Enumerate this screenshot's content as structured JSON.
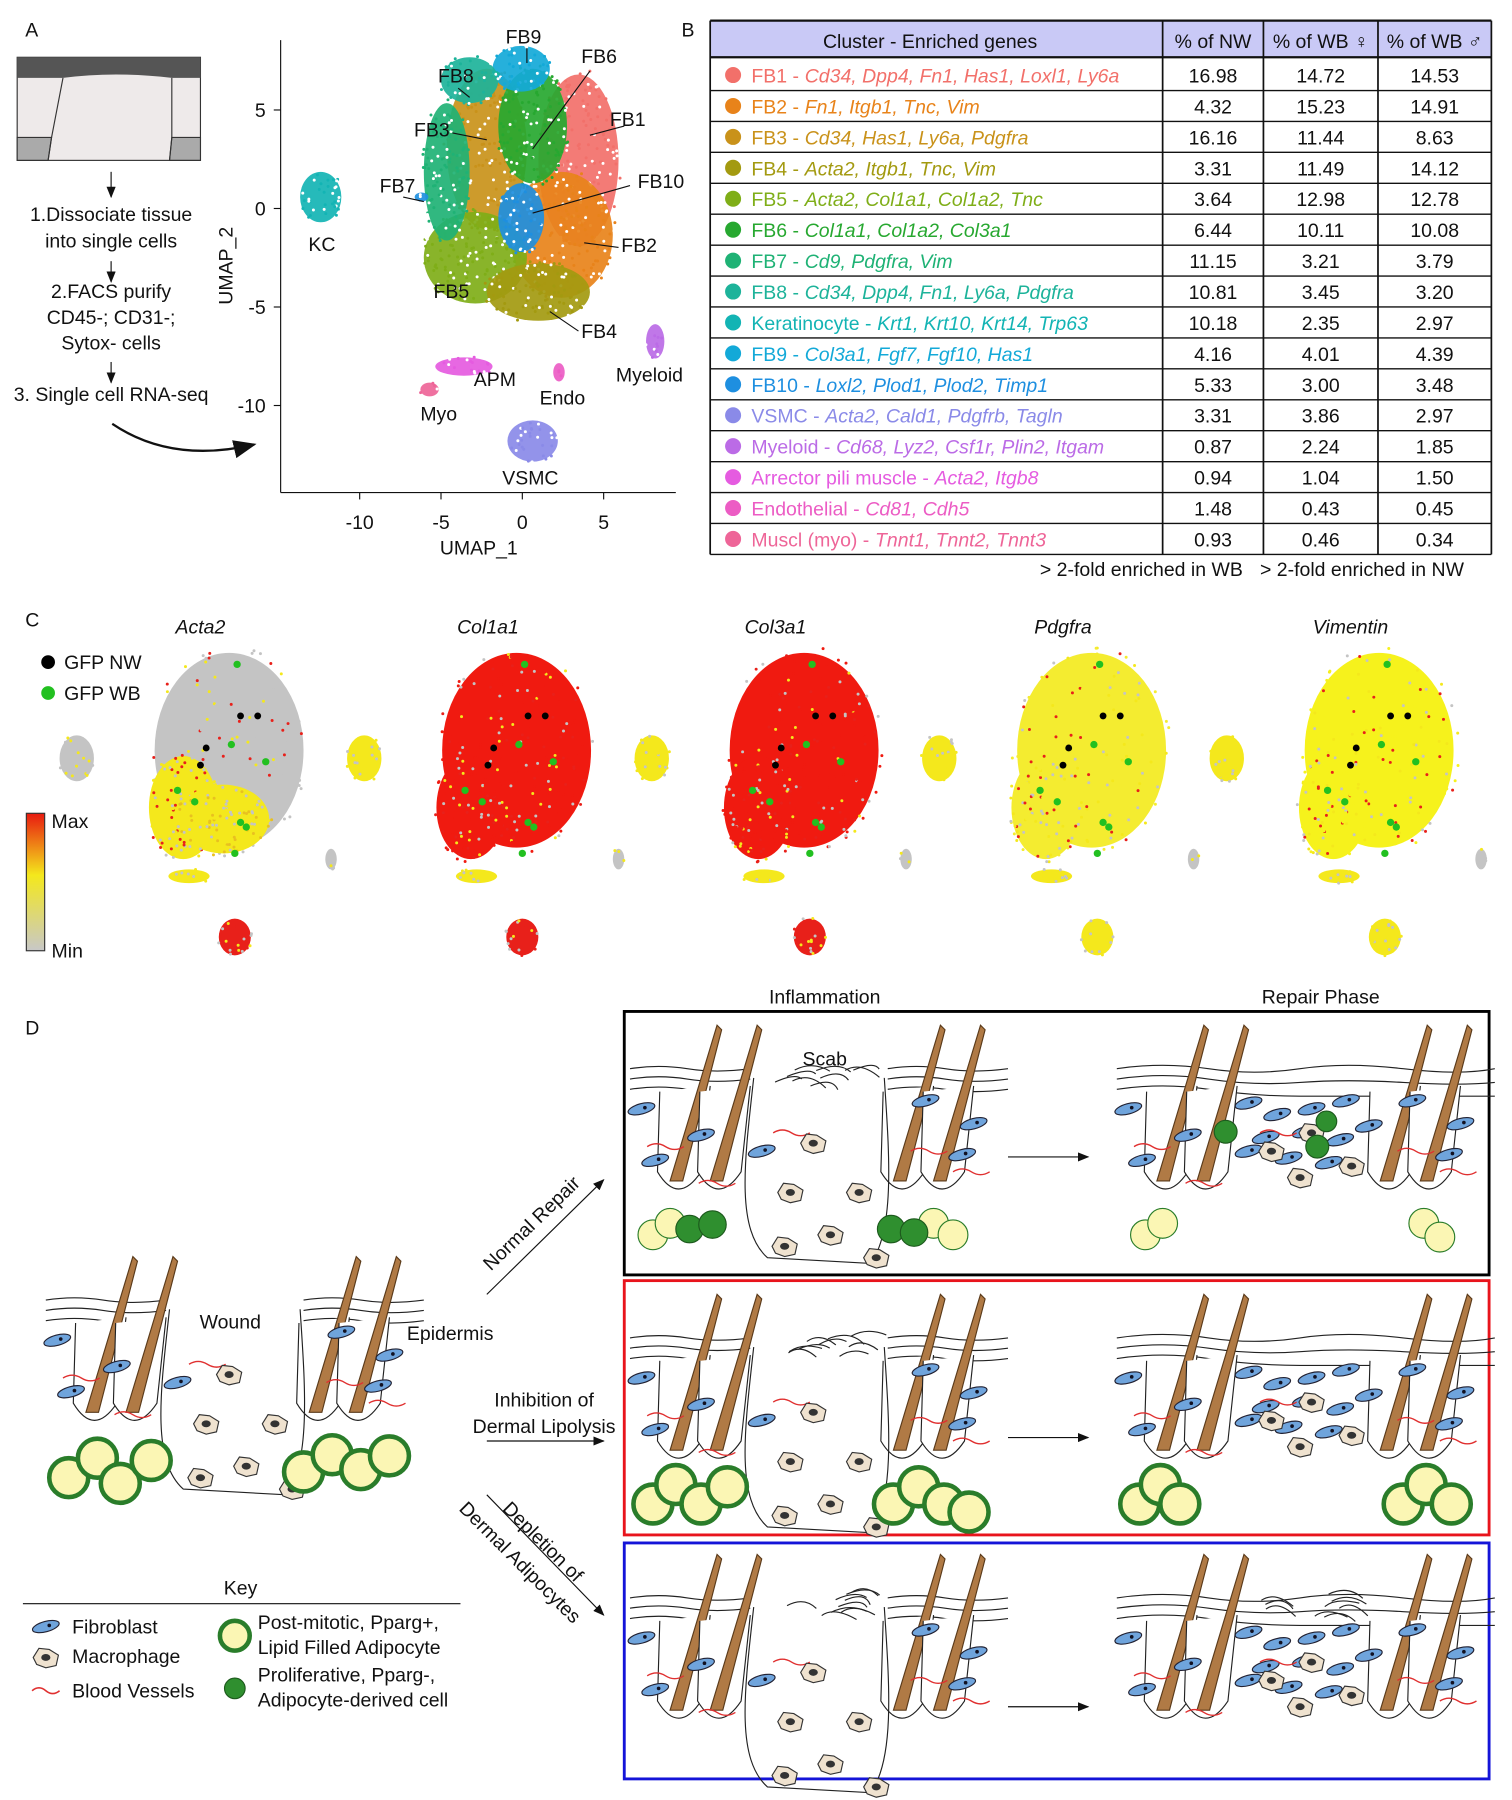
{
  "panel_a": {
    "label": "A",
    "steps": [
      [
        "1.Dissociate tissue",
        "into single cells"
      ],
      [
        "2.FACS purify",
        "CD45-; CD31-;",
        "Sytox- cells"
      ],
      [
        "3. Single cell RNA-seq"
      ]
    ],
    "umap": {
      "x_label": "UMAP_1",
      "y_label": "UMAP_2",
      "xticks": [
        -10,
        -5,
        0,
        5
      ],
      "yticks": [
        -10,
        -5,
        0,
        5
      ],
      "clusters": [
        "FB9",
        "FB6",
        "FB8",
        "FB1",
        "FB3",
        "FB7",
        "FB10",
        "KC",
        "FB2",
        "FB5",
        "FB4",
        "APM",
        "Myeloid",
        "Endo",
        "Myo",
        "VSMC"
      ]
    }
  },
  "panel_b": {
    "label": "B",
    "header": [
      "Cluster - Enriched genes",
      "% of NW",
      "% of WB ♀",
      "% of WB ♂"
    ],
    "enrichment_colors": {
      "WB": "#e8141c",
      "NW": "#1414d8"
    },
    "rows": [
      {
        "color": "#f2706a",
        "name": "FB1 -",
        "genes": "Cd34, Dpp4, Fn1, Has1, Loxl1, Ly6a",
        "values": [
          "16.98",
          "14.72",
          "14.53"
        ],
        "enriched_in": null
      },
      {
        "color": "#e8831a",
        "name": "FB2 -",
        "genes": "Fn1, Itgb1, Tnc, Vim",
        "values": [
          "4.32",
          "15.23",
          "14.91"
        ],
        "enriched_in": "WB"
      },
      {
        "color": "#c9921a",
        "name": "FB3 -",
        "genes": "Cd34, Has1, Ly6a, Pdgfra",
        "values": [
          "16.16",
          "11.44",
          "8.63"
        ],
        "enriched_in": null
      },
      {
        "color": "#a39a10",
        "name": "FB4 -",
        "genes": "Acta2, Itgb1, Tnc, Vim",
        "values": [
          "3.31",
          "11.49",
          "14.12"
        ],
        "enriched_in": "WB"
      },
      {
        "color": "#7fae18",
        "name": "FB5 -",
        "genes": "Acta2, Col1a1, Col1a2, Tnc",
        "values": [
          "3.64",
          "12.98",
          "12.78"
        ],
        "enriched_in": "WB"
      },
      {
        "color": "#27a830",
        "name": "FB6 -",
        "genes": "Col1a1, Col1a2, Col3a1",
        "values": [
          "6.44",
          "10.11",
          "10.08"
        ],
        "enriched_in": null
      },
      {
        "color": "#1fb275",
        "name": "FB7 -",
        "genes": "Cd9, Pdgfra, Vim",
        "values": [
          "11.15",
          "3.21",
          "3.79"
        ],
        "enriched_in": "NW"
      },
      {
        "color": "#1db39a",
        "name": "FB8 -",
        "genes": "Cd34, Dpp4, Fn1, Ly6a, Pdgfra",
        "values": [
          "10.81",
          "3.45",
          "3.20"
        ],
        "enriched_in": "NW"
      },
      {
        "color": "#13b4b4",
        "name": "Keratinocyte -",
        "genes": "Krt1, Krt10, Krt14, Trp63",
        "values": [
          "10.18",
          "2.35",
          "2.97"
        ],
        "enriched_in": "NW"
      },
      {
        "color": "#13a9d8",
        "name": "FB9 -",
        "genes": "Col3a1, Fgf7, Fgf10, Has1",
        "values": [
          "4.16",
          "4.01",
          "4.39"
        ],
        "enriched_in": null
      },
      {
        "color": "#1e8fe0",
        "name": "FB10 -",
        "genes": "Loxl2, Plod1, Plod2, Timp1",
        "values": [
          "5.33",
          "3.00",
          "3.48"
        ],
        "enriched_in": null
      },
      {
        "color": "#8a8ae8",
        "name": "VSMC -",
        "genes": "Acta2, Cald1, Pdgfrb, Tagln",
        "values": [
          "3.31",
          "3.86",
          "2.97"
        ],
        "enriched_in": null
      },
      {
        "color": "#bb6be6",
        "name": "Myeloid -",
        "genes": "Cd68, Lyz2, Csf1r, Plin2, Itgam",
        "values": [
          "0.87",
          "2.24",
          "1.85"
        ],
        "enriched_in": "WB"
      },
      {
        "color": "#e55be0",
        "name": "Arrector pili muscle -",
        "genes": "Acta2, Itgb8",
        "values": [
          "0.94",
          "1.04",
          "1.50"
        ],
        "enriched_in": null
      },
      {
        "color": "#ec5cc4",
        "name": "Endothelial -",
        "genes": "Cd81, Cdh5",
        "values": [
          "1.48",
          "0.43",
          "0.45"
        ],
        "enriched_in": "NW"
      },
      {
        "color": "#ee6598",
        "name": "Muscl (myo) -",
        "genes": "Tnnt1, Tnnt2, Tnnt3",
        "values": [
          "0.93",
          "0.46",
          "0.34"
        ],
        "enriched_in": "NW"
      }
    ],
    "notes": [
      {
        "text": "> 2-fold enriched in WB",
        "enriched_in": "WB"
      },
      {
        "text": "> 2-fold enriched in NW",
        "enriched_in": "NW"
      }
    ]
  },
  "panel_c": {
    "label": "C",
    "genes": [
      {
        "name": "Acta2",
        "color": "#c4c4c4"
      },
      {
        "name": "Col1a1",
        "color": "#f01a10"
      },
      {
        "name": "Col3a1",
        "color": "#f01a10"
      },
      {
        "name": "Pdgfra",
        "color": "#f4ec30"
      },
      {
        "name": "Vimentin",
        "color": "#f6f21c"
      }
    ],
    "legend": [
      {
        "name": "GFP NW",
        "color": "#000000"
      },
      {
        "name": "GFP WB",
        "color": "#22c020"
      }
    ],
    "scale": {
      "max": "Max",
      "min": "Min"
    }
  },
  "panel_d": {
    "label": "D",
    "phases": [
      "Inflammation",
      "Repair Phase"
    ],
    "labels": {
      "scab": "Scab",
      "wound": "Wound",
      "epidermis": "Epidermis"
    },
    "conditions": [
      {
        "name": [
          "Normal Repair"
        ],
        "color": "#000000"
      },
      {
        "name": [
          "Inhibition of",
          "Dermal Lipolysis"
        ],
        "color": "#e8141c"
      },
      {
        "name": [
          "Depletion of",
          "Dermal Adipocytes"
        ],
        "color": "#1414d8"
      }
    ],
    "key": {
      "title": "Key",
      "items": [
        {
          "lines": [
            "Fibroblast"
          ]
        },
        {
          "lines": [
            "Macrophage"
          ]
        },
        {
          "lines": [
            "Blood Vessels"
          ]
        },
        {
          "lines": [
            "Post-mitotic, Pparg+,",
            "Lipid Filled Adipocyte"
          ]
        },
        {
          "lines": [
            "Proliferative, Pparg-,",
            "Adipocyte-derived cell"
          ]
        }
      ]
    }
  }
}
